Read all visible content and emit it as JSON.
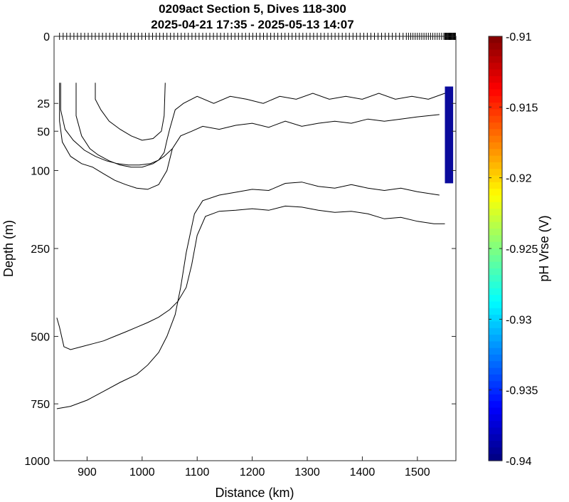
{
  "chart_data": {
    "type": "contour",
    "title": "0209act Section 5, Dives 118-300",
    "subtitle": "2025-04-21 17:35 - 2025-05-13 14:07",
    "xlabel": "Distance (km)",
    "ylabel": "Depth (m)",
    "xlim": [
      840,
      1570
    ],
    "ylim": [
      0,
      1000
    ],
    "y_scale": "sqrt",
    "reverse_y": true,
    "x_ticks": [
      900,
      1000,
      1100,
      1200,
      1300,
      1400,
      1500
    ],
    "y_ticks": [
      0,
      25,
      50,
      100,
      250,
      500,
      750,
      1000
    ],
    "colorbar": {
      "label": "pH Vrse (V)",
      "limits": [
        -0.94,
        -0.91
      ],
      "ticks": [
        -0.91,
        -0.915,
        -0.92,
        -0.925,
        -0.93,
        -0.935,
        -0.94
      ],
      "tick_labels": [
        "-0.91",
        "-0.915",
        "-0.92",
        "-0.925",
        "-0.93",
        "-0.935",
        "-0.94"
      ],
      "colormap": "jet"
    },
    "contours": [
      {
        "level": "c1",
        "points": [
          [
            852,
            12
          ],
          [
            852,
            30
          ],
          [
            860,
            48
          ],
          [
            875,
            60
          ],
          [
            895,
            72
          ],
          [
            915,
            80
          ],
          [
            935,
            86
          ],
          [
            955,
            90
          ],
          [
            975,
            92
          ],
          [
            995,
            92
          ],
          [
            1015,
            90
          ],
          [
            1030,
            85
          ],
          [
            1040,
            75
          ],
          [
            1045,
            60
          ],
          [
            1050,
            48
          ],
          [
            1060,
            30
          ],
          [
            1075,
            25
          ],
          [
            1100,
            20
          ],
          [
            1130,
            25
          ],
          [
            1160,
            20
          ],
          [
            1190,
            22
          ],
          [
            1220,
            25
          ],
          [
            1250,
            20
          ],
          [
            1280,
            22
          ],
          [
            1310,
            18
          ],
          [
            1340,
            22
          ],
          [
            1370,
            20
          ],
          [
            1400,
            22
          ],
          [
            1430,
            18
          ],
          [
            1460,
            22
          ],
          [
            1490,
            20
          ],
          [
            1520,
            22
          ],
          [
            1550,
            18
          ]
        ]
      },
      {
        "level": "c2",
        "points": [
          [
            850,
            12
          ],
          [
            850,
            40
          ],
          [
            855,
            62
          ],
          [
            870,
            80
          ],
          [
            890,
            90
          ],
          [
            910,
            95
          ],
          [
            930,
            105
          ],
          [
            950,
            115
          ],
          [
            970,
            122
          ],
          [
            990,
            128
          ],
          [
            1010,
            130
          ],
          [
            1030,
            122
          ],
          [
            1045,
            100
          ],
          [
            1055,
            70
          ],
          [
            1070,
            55
          ],
          [
            1090,
            50
          ],
          [
            1110,
            45
          ],
          [
            1140,
            48
          ],
          [
            1170,
            44
          ],
          [
            1200,
            42
          ],
          [
            1230,
            46
          ],
          [
            1260,
            40
          ],
          [
            1290,
            45
          ],
          [
            1320,
            42
          ],
          [
            1350,
            40
          ],
          [
            1380,
            42
          ],
          [
            1410,
            38
          ],
          [
            1440,
            40
          ],
          [
            1470,
            38
          ],
          [
            1500,
            36
          ],
          [
            1540,
            34
          ]
        ]
      },
      {
        "level": "c3",
        "points": [
          [
            880,
            12
          ],
          [
            880,
            35
          ],
          [
            890,
            55
          ],
          [
            905,
            70
          ],
          [
            920,
            78
          ],
          [
            940,
            86
          ],
          [
            960,
            92
          ],
          [
            980,
            95
          ],
          [
            1000,
            95
          ],
          [
            1020,
            90
          ],
          [
            1040,
            80
          ],
          [
            1055,
            70
          ]
        ]
      },
      {
        "level": "c4",
        "points": [
          [
            915,
            12
          ],
          [
            915,
            22
          ],
          [
            925,
            30
          ],
          [
            940,
            40
          ],
          [
            960,
            48
          ],
          [
            980,
            55
          ],
          [
            1000,
            60
          ],
          [
            1020,
            58
          ],
          [
            1035,
            50
          ],
          [
            1040,
            35
          ],
          [
            1042,
            12
          ]
        ]
      },
      {
        "level": "c5",
        "points": [
          [
            845,
            440
          ],
          [
            850,
            470
          ],
          [
            858,
            535
          ],
          [
            870,
            545
          ],
          [
            890,
            535
          ],
          [
            910,
            525
          ],
          [
            930,
            515
          ],
          [
            950,
            500
          ],
          [
            970,
            485
          ],
          [
            990,
            470
          ],
          [
            1010,
            455
          ],
          [
            1030,
            438
          ],
          [
            1050,
            415
          ],
          [
            1065,
            390
          ],
          [
            1080,
            350
          ],
          [
            1090,
            290
          ],
          [
            1100,
            220
          ],
          [
            1115,
            180
          ],
          [
            1140,
            170
          ],
          [
            1170,
            168
          ],
          [
            1200,
            165
          ],
          [
            1230,
            168
          ],
          [
            1260,
            160
          ],
          [
            1290,
            162
          ],
          [
            1320,
            168
          ],
          [
            1350,
            172
          ],
          [
            1380,
            170
          ],
          [
            1410,
            175
          ],
          [
            1440,
            185
          ],
          [
            1470,
            182
          ],
          [
            1500,
            190
          ],
          [
            1530,
            195
          ],
          [
            1550,
            195
          ]
        ]
      },
      {
        "level": "c6",
        "points": [
          [
            845,
            770
          ],
          [
            870,
            760
          ],
          [
            900,
            735
          ],
          [
            930,
            700
          ],
          [
            960,
            665
          ],
          [
            990,
            635
          ],
          [
            1010,
            600
          ],
          [
            1030,
            555
          ],
          [
            1045,
            500
          ],
          [
            1060,
            430
          ],
          [
            1070,
            350
          ],
          [
            1080,
            260
          ],
          [
            1095,
            175
          ],
          [
            1110,
            150
          ],
          [
            1140,
            140
          ],
          [
            1170,
            135
          ],
          [
            1200,
            130
          ],
          [
            1230,
            132
          ],
          [
            1260,
            120
          ],
          [
            1290,
            118
          ],
          [
            1320,
            125
          ],
          [
            1350,
            128
          ],
          [
            1380,
            122
          ],
          [
            1410,
            128
          ],
          [
            1440,
            132
          ],
          [
            1470,
            128
          ],
          [
            1500,
            134
          ],
          [
            1540,
            140
          ]
        ]
      }
    ],
    "colored_patch": {
      "x_range": [
        1550,
        1565
      ],
      "depth_range": [
        14,
        120
      ],
      "value": -0.94,
      "color": "#0b0b9c"
    },
    "dive_markers": "ticks along surface, dense near 1550-1570 km"
  }
}
